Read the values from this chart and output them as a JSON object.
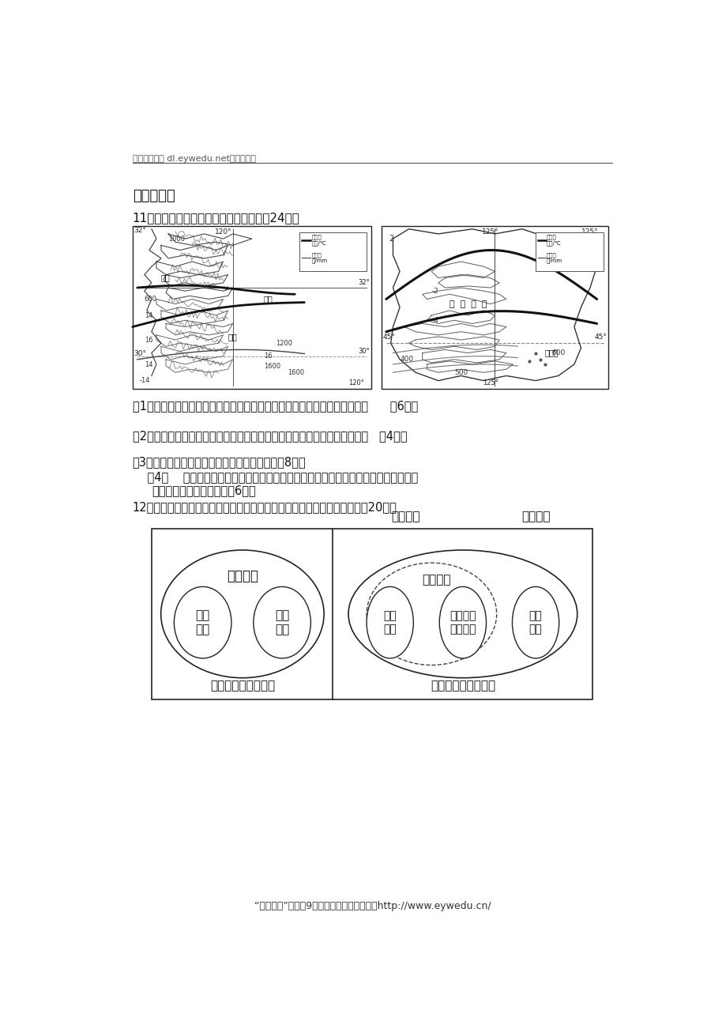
{
  "header_text": "地理备课大师 dl.eywedu.net》全免费《",
  "header_text2": "地理备课大师 dl.eywedu.net【全免费】",
  "section_title": "二．综合题",
  "q11_text": "11．读我国两区域图，回答下列问题。（24分）",
  "q11_sub1": "（1）左图和右图所示地区年均温有何差异？产生此差异的主要原因是什么？      （6分）",
  "q11_sub2": "（2）松嫩平原的年降水量分布有什么规律？形成此规律的主要原因是什么？   （4分）",
  "q11_sub3": "（3）描述右图中等温线的弯曲方向并分析原因（8分）",
  "q11_sub4_intro": "    （4）    图中所示两地区的主要农业地域类型分别是什么？右图所示地区主要农业地域",
  "q11_sub4_cont": "类型的生产特点是什么？（6分）",
  "q12_text": "12．读下面浙江省西部某山区农业产业结构调整示意图，回答下列问题。（20分）",
  "footer_text": "“备课大师”全科【9门】：免注册，不收费！http://www.eywedu.cn/",
  "bg_color": "#ffffff",
  "text_color": "#000000"
}
